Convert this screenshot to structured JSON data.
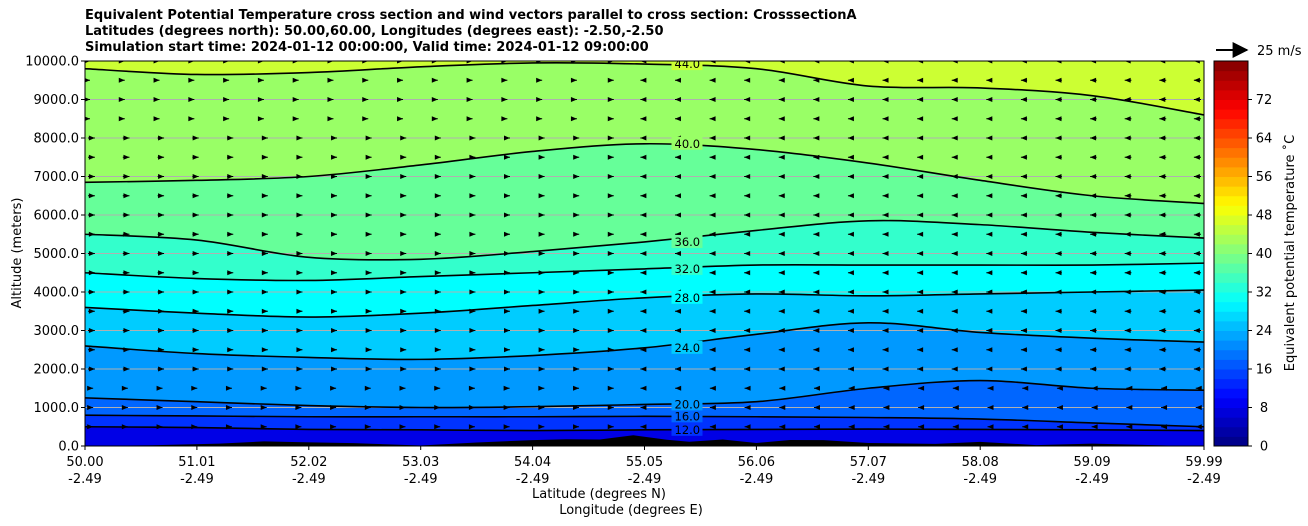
{
  "chart_data": {
    "type": "heatmap",
    "title_lines": [
      "Equivalent Potential Temperature cross section and wind vectors parallel to cross section: CrosssectionA",
      "Latitudes (degrees north): 50.00,60.00, Longitudes (degrees east): -2.50,-2.50",
      "Simulation start time: 2024-01-12 00:00:00, Valid time: 2024-01-12 09:00:00"
    ],
    "xlabel": "Latitude (degrees N)",
    "xlabel2": "Longitude (degrees E)",
    "ylabel": "Altitude (meters)",
    "x_ticks": [
      {
        "lat": "50.00",
        "lon": "-2.49"
      },
      {
        "lat": "51.01",
        "lon": "-2.49"
      },
      {
        "lat": "52.02",
        "lon": "-2.49"
      },
      {
        "lat": "53.03",
        "lon": "-2.49"
      },
      {
        "lat": "54.04",
        "lon": "-2.49"
      },
      {
        "lat": "55.05",
        "lon": "-2.49"
      },
      {
        "lat": "56.06",
        "lon": "-2.49"
      },
      {
        "lat": "57.07",
        "lon": "-2.49"
      },
      {
        "lat": "58.08",
        "lon": "-2.49"
      },
      {
        "lat": "59.09",
        "lon": "-2.49"
      },
      {
        "lat": "59.99",
        "lon": "-2.49"
      }
    ],
    "ylim": [
      0,
      10000
    ],
    "y_ticks": [
      "0.0",
      "1000.0",
      "2000.0",
      "3000.0",
      "4000.0",
      "5000.0",
      "6000.0",
      "7000.0",
      "8000.0",
      "9000.0",
      "10000.0"
    ],
    "grid": "horizontal",
    "colorbar": {
      "label": "Equivalent potential temperature ˚C",
      "range": [
        0,
        80
      ],
      "ticks": [
        "0",
        "8",
        "16",
        "24",
        "32",
        "40",
        "48",
        "56",
        "64",
        "72"
      ]
    },
    "quiver_key": "25 m/s",
    "contours": [
      {
        "value": 12.0,
        "label": "12.0",
        "heights": [
          500,
          480,
          430,
          420,
          400,
          420,
          430,
          440,
          430,
          420,
          400
        ]
      },
      {
        "value": 16.0,
        "label": "16.0",
        "heights": [
          800,
          780,
          760,
          760,
          760,
          770,
          760,
          740,
          700,
          600,
          500
        ]
      },
      {
        "value": 20.0,
        "label": "20.0",
        "heights": [
          1250,
          1150,
          1050,
          1000,
          1020,
          1080,
          1150,
          1500,
          1700,
          1500,
          1450
        ]
      },
      {
        "value": 24.0,
        "label": "24.0",
        "heights": [
          2600,
          2400,
          2300,
          2250,
          2350,
          2550,
          2900,
          3200,
          2950,
          2800,
          2700
        ]
      },
      {
        "value": 28.0,
        "label": "28.0",
        "heights": [
          3600,
          3450,
          3350,
          3450,
          3650,
          3850,
          3950,
          3900,
          3950,
          4000,
          4050
        ]
      },
      {
        "value": 32.0,
        "label": "32.0",
        "heights": [
          4500,
          4350,
          4300,
          4400,
          4500,
          4600,
          4700,
          4700,
          4700,
          4700,
          4750
        ]
      },
      {
        "value": 36.0,
        "label": "36.0",
        "heights": [
          5500,
          5350,
          4900,
          4850,
          5050,
          5300,
          5600,
          5850,
          5750,
          5550,
          5400
        ]
      },
      {
        "value": 40.0,
        "label": "40.0",
        "heights": [
          6850,
          6900,
          7000,
          7300,
          7650,
          7850,
          7700,
          7350,
          6900,
          6500,
          6300
        ]
      },
      {
        "value": 44.0,
        "label": "44.0",
        "heights": [
          9800,
          9650,
          9700,
          9850,
          9950,
          9920,
          9800,
          9350,
          9300,
          9100,
          8600
        ]
      }
    ]
  }
}
